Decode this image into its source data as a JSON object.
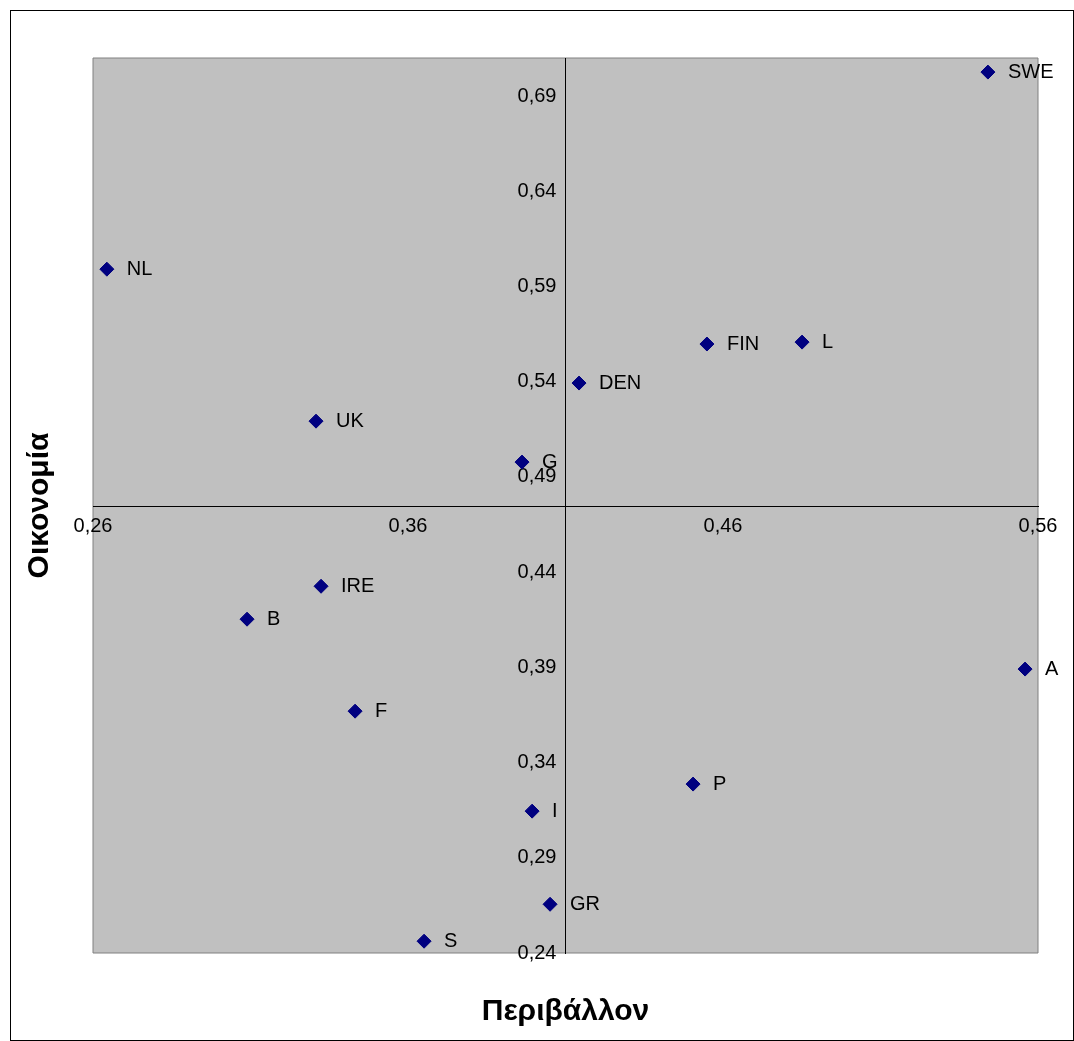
{
  "chart_data": {
    "type": "scatter",
    "xlabel": "Περιβάλλον",
    "ylabel": "Οικονομία",
    "x": [
      0.5441,
      0.2644,
      0.4549,
      0.4851,
      0.4143,
      0.3308,
      0.3962,
      0.3324,
      0.3089,
      0.5559,
      0.3432,
      0.4505,
      0.3994,
      0.4051,
      0.3651
    ],
    "series": [
      {
        "color": "#000080",
        "values": [
          0.7026,
          0.5991,
          0.5598,
          0.5608,
          0.5393,
          0.5193,
          0.4978,
          0.4326,
          0.4153,
          0.3891,
          0.367,
          0.3287,
          0.3145,
          0.2656,
          0.2462
        ]
      }
    ],
    "marker": "diamond",
    "grid": false,
    "legend": false,
    "xlim": [
      0.26,
      0.56
    ],
    "ylim": [
      0.24,
      0.71
    ],
    "xticks": [
      {
        "value": 0.26,
        "label": "0,26"
      },
      {
        "value": 0.36,
        "label": "0,36"
      },
      {
        "value": 0.46,
        "label": "0,46"
      },
      {
        "value": 0.56,
        "label": "0,56"
      }
    ],
    "yticks": [
      {
        "value": 0.24,
        "label": "0,24"
      },
      {
        "value": 0.29,
        "label": "0,29"
      },
      {
        "value": 0.34,
        "label": "0,34"
      },
      {
        "value": 0.39,
        "label": "0,39"
      },
      {
        "value": 0.44,
        "label": "0,44"
      },
      {
        "value": 0.49,
        "label": "0,49"
      },
      {
        "value": 0.54,
        "label": "0,54"
      },
      {
        "value": 0.59,
        "label": "0,59"
      },
      {
        "value": 0.64,
        "label": "0,64"
      },
      {
        "value": 0.69,
        "label": "0,69"
      }
    ],
    "annotations": [
      {
        "text": "SWE",
        "x": 0.5441,
        "y": 0.7026
      },
      {
        "text": "NL",
        "x": 0.2644,
        "y": 0.5991
      },
      {
        "text": "FIN",
        "x": 0.4549,
        "y": 0.5598
      },
      {
        "text": "L",
        "x": 0.4851,
        "y": 0.5608
      },
      {
        "text": "DEN",
        "x": 0.4143,
        "y": 0.5393
      },
      {
        "text": "UK",
        "x": 0.3308,
        "y": 0.5193
      },
      {
        "text": "G",
        "x": 0.3962,
        "y": 0.4978
      },
      {
        "text": "IRE",
        "x": 0.3324,
        "y": 0.4326
      },
      {
        "text": "B",
        "x": 0.3089,
        "y": 0.4153
      },
      {
        "text": "A",
        "x": 0.5559,
        "y": 0.3891
      },
      {
        "text": "F",
        "x": 0.3432,
        "y": 0.367
      },
      {
        "text": "P",
        "x": 0.4505,
        "y": 0.3287
      },
      {
        "text": "I",
        "x": 0.3994,
        "y": 0.3145
      },
      {
        "text": "GR",
        "x": 0.4051,
        "y": 0.2656
      },
      {
        "text": "S",
        "x": 0.3651,
        "y": 0.2462
      }
    ]
  }
}
